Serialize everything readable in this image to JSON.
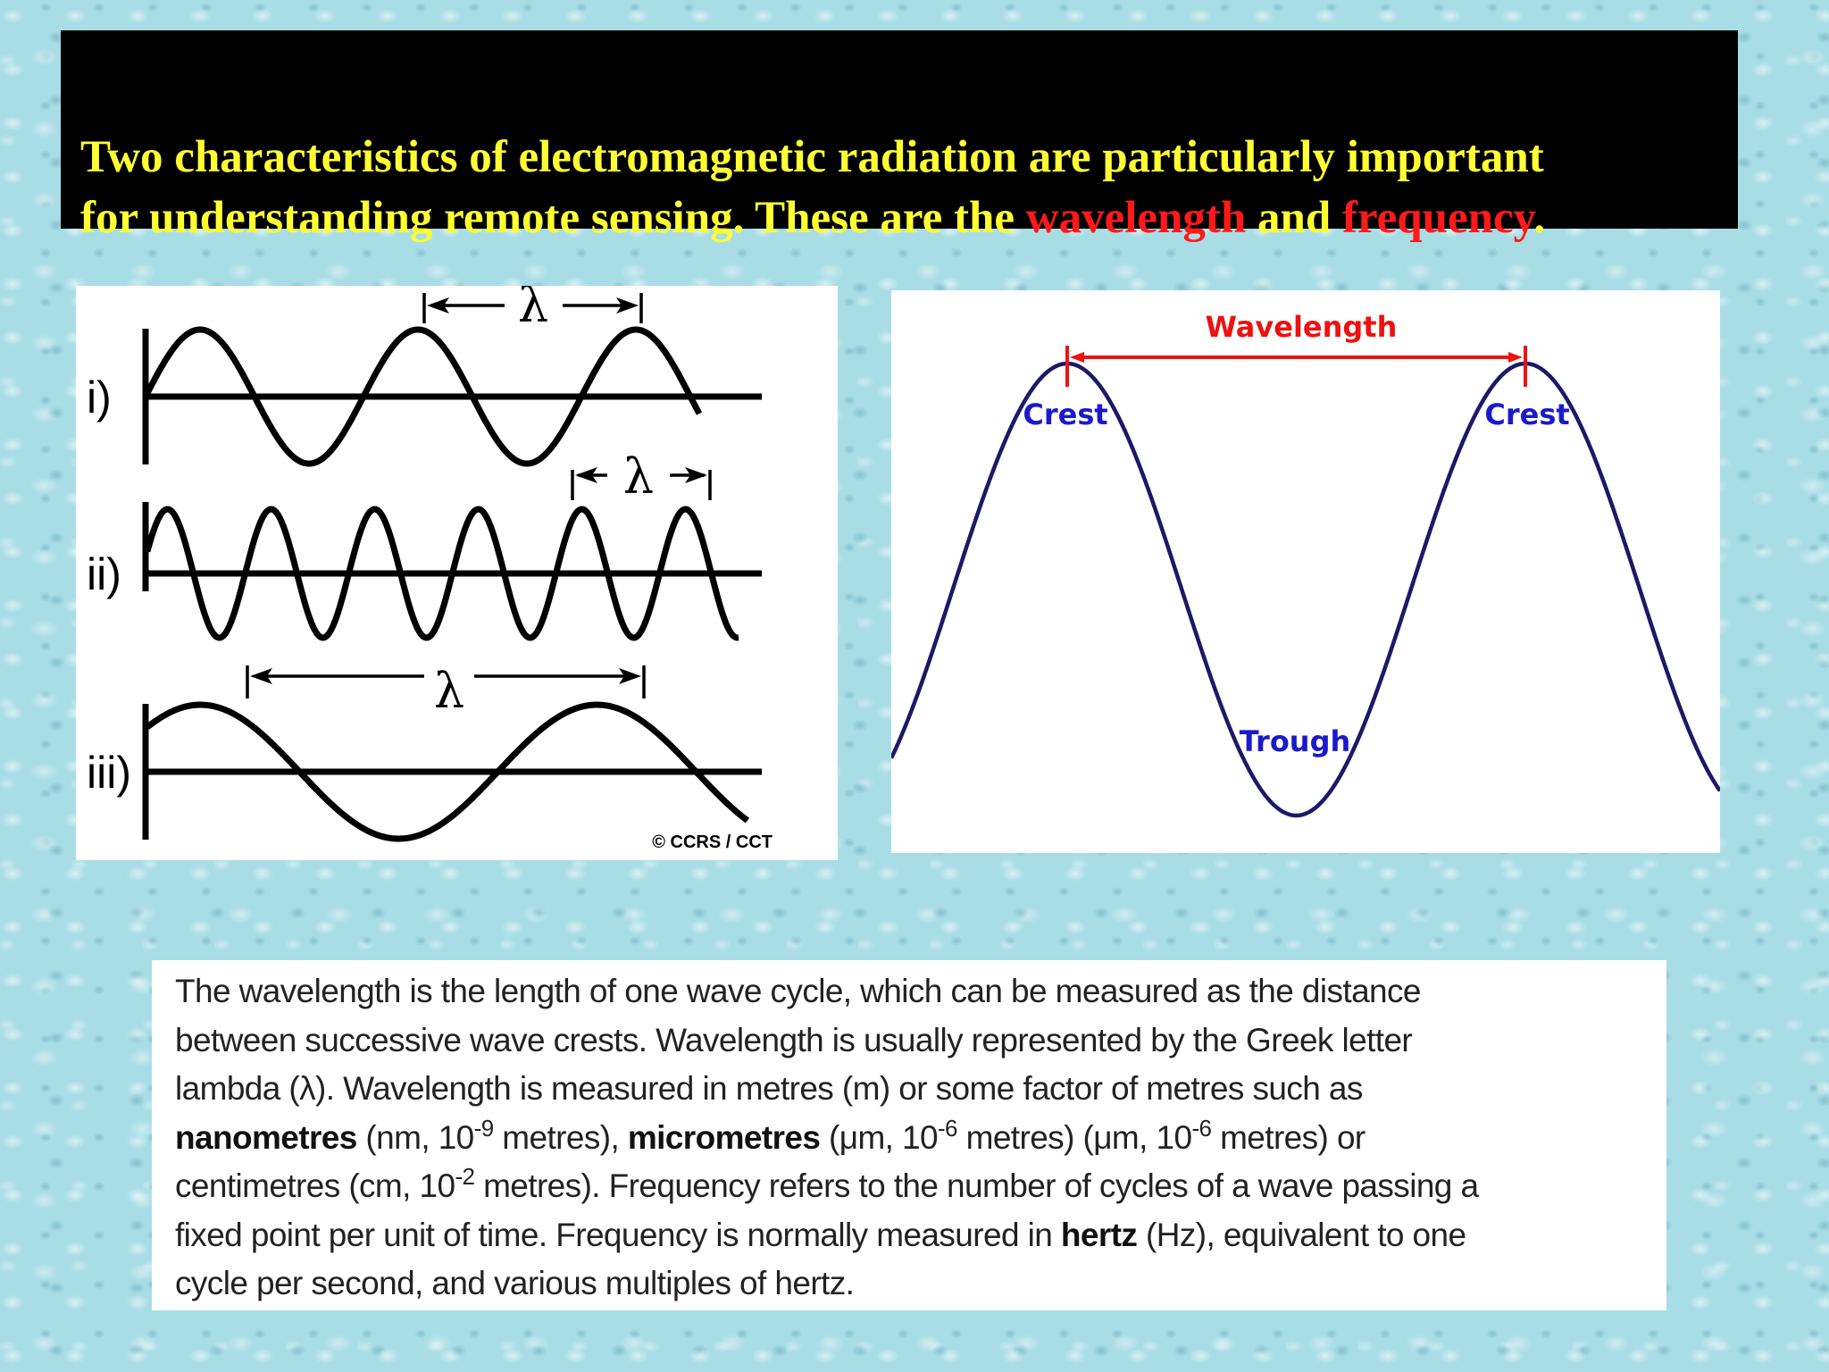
{
  "title": {
    "part1": "Two characteristics of electromagnetic radiation are particularly important",
    "part2": "for understanding remote sensing. These are the",
    "highlight1": "wavelength",
    "and": "and",
    "highlight2": "frequency",
    "end": "."
  },
  "left_diagram": {
    "labels": [
      "i)",
      "ii)",
      "iii)"
    ],
    "lambda": "λ",
    "credit": "© CCRS / CCT"
  },
  "right_diagram": {
    "wavelength_label": "Wavelength",
    "crest_label": "Crest",
    "trough_label": "Trough"
  },
  "description": {
    "l1": "The wavelength is the length of one wave cycle, which can be measured as the distance",
    "l2": "between successive wave crests. Wavelength is usually represented by the Greek letter",
    "l3": "lambda (λ). Wavelength is measured in metres (m) or some factor of metres such as",
    "l4_b1": "nanometres",
    "l4_a": " (nm, 10",
    "l4_sup1": "-9",
    "l4_b": " metres), ",
    "l4_b2": "micrometres",
    "l4_c": " (μm, 10",
    "l4_sup2": "-6",
    "l4_d": " metres) (μm, 10",
    "l4_sup3": "-6",
    "l4_e": " metres) or",
    "l5_a": "centimetres (cm, 10",
    "l5_sup": "-2",
    "l5_b": " metres). Frequency refers to the number of cycles of a wave passing a",
    "l6_a": "fixed point per unit of time. Frequency is normally measured in ",
    "l6_b": "hertz",
    "l6_c": " (Hz), equivalent to one",
    "l7": "cycle per second, and various multiples of hertz."
  },
  "colors": {
    "title_text": "#ffff33",
    "highlight": "#ff1a1a",
    "crest_trough_text": "#1a1acc",
    "wave_line": "#1a1a66",
    "wavelength_arrow": "#ee1111"
  }
}
